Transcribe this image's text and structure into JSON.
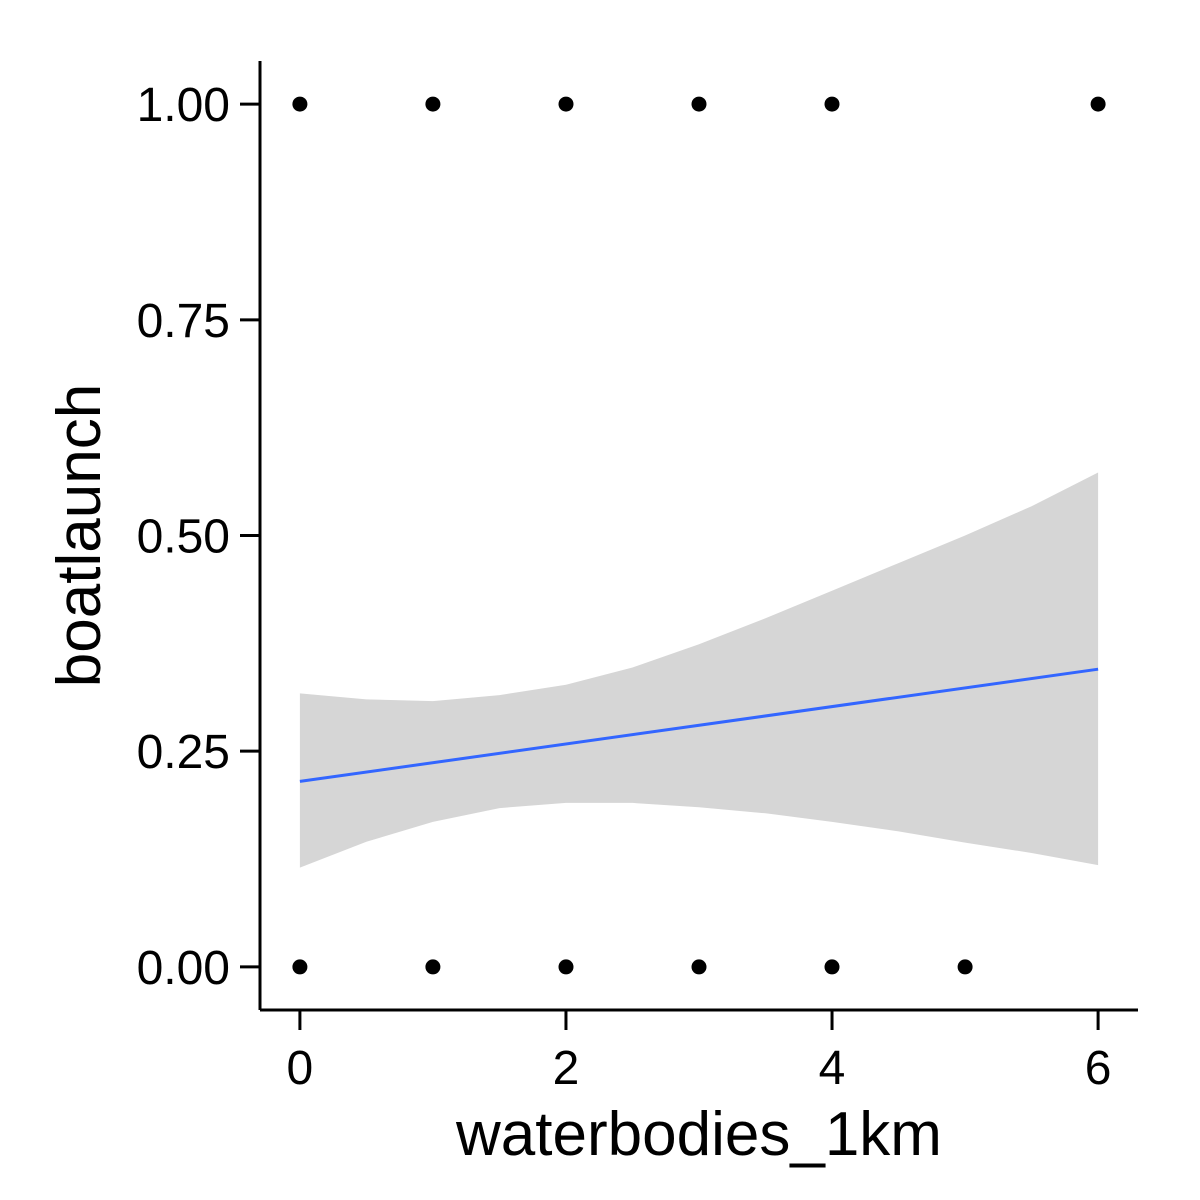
{
  "chart_data": {
    "type": "scatter",
    "title": "",
    "xlabel": "waterbodies_1km",
    "ylabel": "boatlaunch",
    "xlim": [
      -0.3,
      6.3
    ],
    "ylim": [
      -0.05,
      1.05
    ],
    "xticks": [
      0,
      2,
      4,
      6
    ],
    "xtick_labels": [
      "0",
      "2",
      "4",
      "6"
    ],
    "yticks": [
      0,
      0.25,
      0.5,
      0.75,
      1
    ],
    "ytick_labels": [
      "0.00",
      "0.25",
      "0.50",
      "0.75",
      "1.00"
    ],
    "grid": false,
    "series": [
      {
        "kind": "points",
        "color": "#000000",
        "x": [
          0,
          1,
          2,
          3,
          4,
          6,
          0,
          1,
          2,
          3,
          4,
          5
        ],
        "y": [
          1,
          1,
          1,
          1,
          1,
          1,
          0,
          0,
          0,
          0,
          0,
          0
        ]
      },
      {
        "kind": "smooth-line",
        "color": "#3366FF",
        "x": [
          0,
          6
        ],
        "y": [
          0.215,
          0.345
        ]
      },
      {
        "kind": "confidence-band",
        "color": "#D6D6D6",
        "x": [
          0,
          0.5,
          1,
          1.5,
          2,
          2.5,
          3,
          3.5,
          4,
          4.5,
          5,
          5.5,
          6
        ],
        "upper": [
          0.317,
          0.31,
          0.308,
          0.315,
          0.327,
          0.347,
          0.374,
          0.404,
          0.436,
          0.468,
          0.5,
          0.534,
          0.573
        ],
        "lower": [
          0.115,
          0.145,
          0.168,
          0.184,
          0.19,
          0.19,
          0.185,
          0.178,
          0.168,
          0.157,
          0.144,
          0.132,
          0.118
        ]
      }
    ]
  }
}
